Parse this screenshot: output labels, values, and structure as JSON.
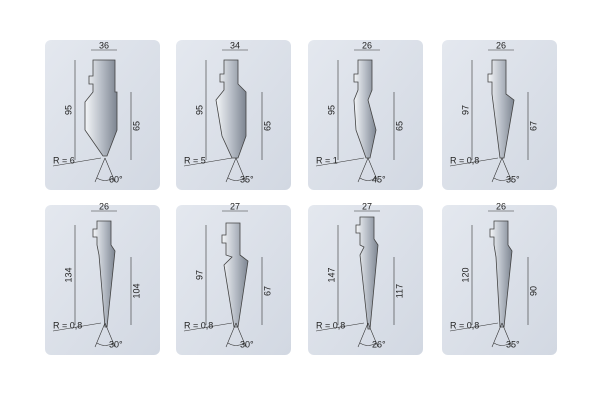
{
  "panels": [
    {
      "width": "36",
      "height_left": "95",
      "height_right": "65",
      "radius": "R = 6",
      "angle": "60°"
    },
    {
      "width": "34",
      "height_left": "95",
      "height_right": "65",
      "radius": "R = 5",
      "angle": "35°"
    },
    {
      "width": "26",
      "height_left": "95",
      "height_right": "65",
      "radius": "R = 1",
      "angle": "45°"
    },
    {
      "width": "26",
      "height_left": "97",
      "height_right": "67",
      "radius": "R = 0,8",
      "angle": "35°"
    },
    {
      "width": "26",
      "height_left": "134",
      "height_right": "104",
      "radius": "R = 0,8",
      "angle": "30°"
    },
    {
      "width": "27",
      "height_left": "97",
      "height_right": "67",
      "radius": "R = 0,8",
      "angle": "30°"
    },
    {
      "width": "27",
      "height_left": "147",
      "height_right": "117",
      "radius": "R = 0,8",
      "angle": "26°"
    },
    {
      "width": "26",
      "height_left": "120",
      "height_right": "90",
      "radius": "R = 0,8",
      "angle": "35°"
    }
  ]
}
